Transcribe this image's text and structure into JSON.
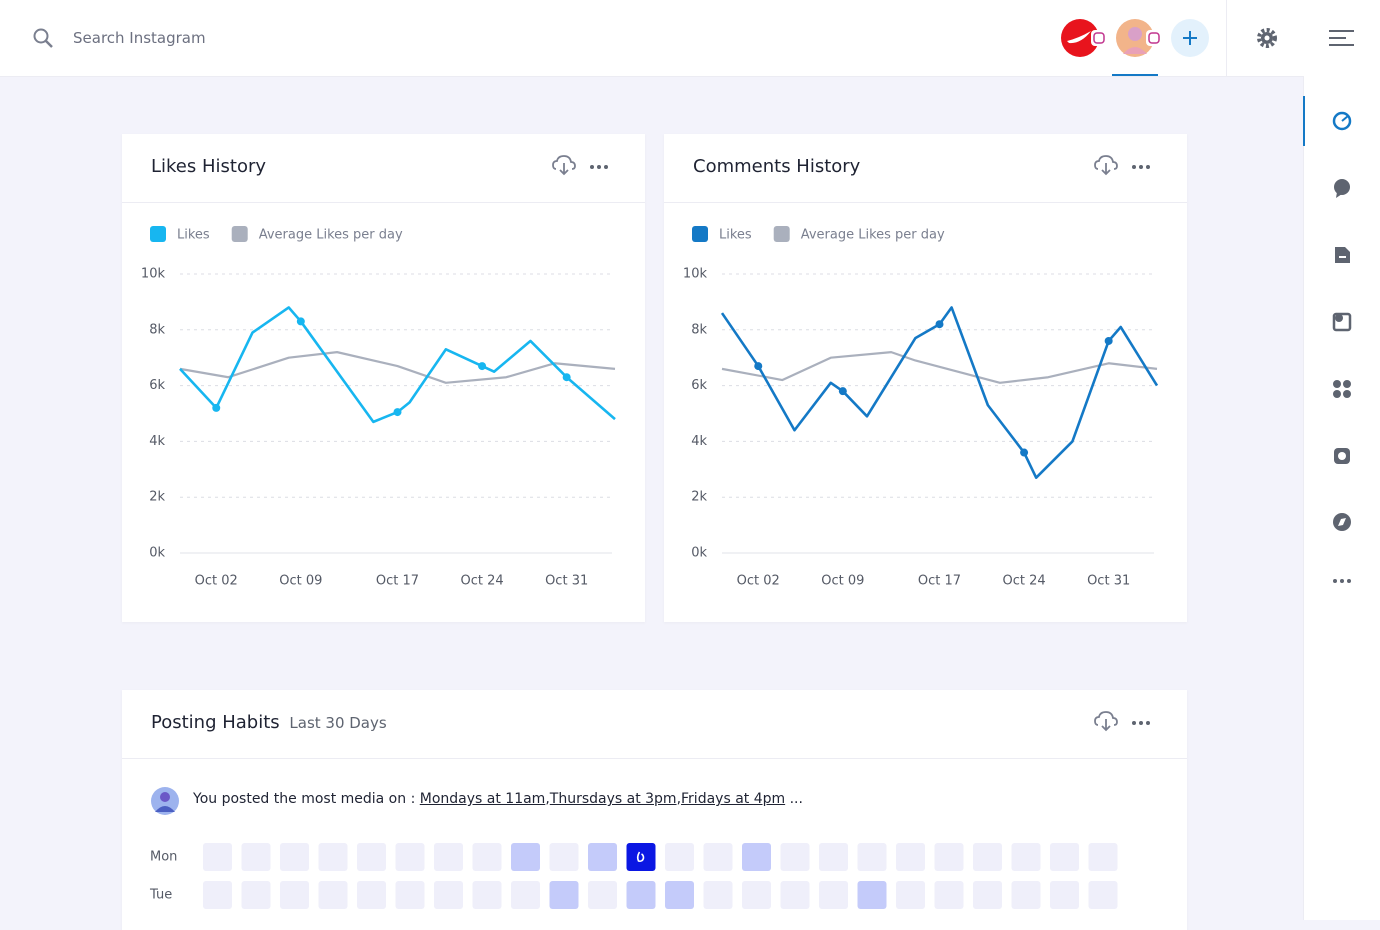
{
  "topbar": {
    "search": "Search Instagram"
  },
  "chart_data": [
    {
      "type": "line",
      "title": "Likes History",
      "xlim": [
        -1,
        35
      ],
      "xticks": [
        {
          "value": 2,
          "label": "Oct 02"
        },
        {
          "value": 9,
          "label": "Oct 09"
        },
        {
          "value": 17,
          "label": "Oct 17"
        },
        {
          "value": 24,
          "label": "Oct 24"
        },
        {
          "value": 31,
          "label": "Oct 31"
        }
      ],
      "ylim": [
        0,
        10000
      ],
      "yticks": [
        {
          "value": 0,
          "label": "0k"
        },
        {
          "value": 2000,
          "label": "2k"
        },
        {
          "value": 4000,
          "label": "4k"
        },
        {
          "value": 6000,
          "label": "6k"
        },
        {
          "value": 8000,
          "label": "8k"
        },
        {
          "value": 10000,
          "label": "10k"
        }
      ],
      "grid": true,
      "series": [
        {
          "name": "Likes",
          "color": "#17b6f0",
          "x": [
            -1,
            2,
            5,
            8,
            9,
            15,
            17,
            18,
            21,
            24,
            25,
            28,
            31,
            35
          ],
          "values": [
            6600,
            5200,
            7900,
            8800,
            8300,
            4700,
            5050,
            5400,
            7300,
            6700,
            6500,
            7600,
            6300,
            4800
          ]
        },
        {
          "name": "Average Likes per day",
          "color": "#aab0bd",
          "x": [
            -1,
            3,
            8,
            12,
            17,
            21,
            26,
            30,
            35
          ],
          "values": [
            6600,
            6300,
            7000,
            7200,
            6700,
            6100,
            6300,
            6800,
            6600
          ]
        }
      ]
    },
    {
      "type": "line",
      "title": "Comments History",
      "xlim": [
        -1,
        35
      ],
      "xticks": [
        {
          "value": 2,
          "label": "Oct 02"
        },
        {
          "value": 9,
          "label": "Oct 09"
        },
        {
          "value": 17,
          "label": "Oct 17"
        },
        {
          "value": 24,
          "label": "Oct 24"
        },
        {
          "value": 31,
          "label": "Oct 31"
        }
      ],
      "ylim": [
        0,
        10000
      ],
      "yticks": [
        {
          "value": 0,
          "label": "0k"
        },
        {
          "value": 2000,
          "label": "2k"
        },
        {
          "value": 4000,
          "label": "4k"
        },
        {
          "value": 6000,
          "label": "6k"
        },
        {
          "value": 8000,
          "label": "8k"
        },
        {
          "value": 10000,
          "label": "10k"
        }
      ],
      "grid": true,
      "series": [
        {
          "name": "Likes",
          "color": "#1479c6",
          "x": [
            -1,
            2,
            5,
            8,
            9,
            11,
            15,
            17,
            18,
            21,
            24,
            25,
            28,
            31,
            32,
            35
          ],
          "values": [
            8600,
            6700,
            4400,
            6100,
            5800,
            4900,
            7700,
            8200,
            8800,
            5300,
            3600,
            2700,
            4000,
            7600,
            8100,
            6000
          ]
        },
        {
          "name": "Average Likes per day",
          "color": "#aab0bd",
          "x": [
            -1,
            4,
            8,
            13,
            15,
            22,
            26,
            31,
            35
          ],
          "values": [
            6600,
            6200,
            7000,
            7200,
            6900,
            6100,
            6300,
            6800,
            6600
          ]
        }
      ]
    }
  ],
  "posting_habits": {
    "title": "Posting Habits",
    "subtitle": "Last 30 Days",
    "message": "You posted the most media on :",
    "links": [
      "Mondays at 11am",
      "Thursdays at 3pm",
      "Fridays at 4pm"
    ],
    "separator": ",",
    "suffix": "...",
    "rows": [
      {
        "label": "Mon",
        "levels": [
          0,
          0,
          0,
          0,
          0,
          0,
          0,
          0,
          1,
          0,
          1,
          2,
          0,
          0,
          1,
          0,
          0,
          0,
          0,
          0,
          0,
          0,
          0,
          0
        ]
      },
      {
        "label": "Tue",
        "levels": [
          0,
          0,
          0,
          0,
          0,
          0,
          0,
          0,
          0,
          1,
          0,
          1,
          1,
          0,
          0,
          0,
          0,
          1,
          0,
          0,
          0,
          0,
          0,
          0
        ]
      }
    ]
  }
}
